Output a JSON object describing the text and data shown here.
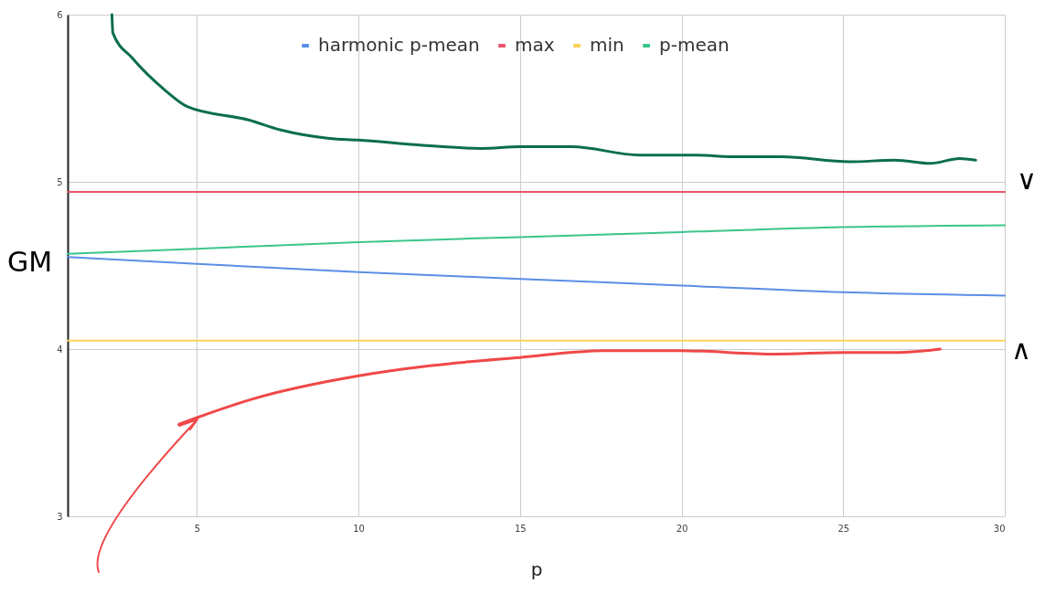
{
  "chart_data": {
    "type": "line",
    "xlabel": "p",
    "xlim": [
      1,
      30
    ],
    "xticks": [
      5,
      10,
      15,
      20,
      25,
      30
    ],
    "ylim": [
      3,
      6
    ],
    "yticks": [
      3,
      4,
      5,
      6
    ],
    "grid": true,
    "legend": "top",
    "annotations": [
      "GM",
      "∨",
      "∧"
    ],
    "series": [
      {
        "name": "harmonic p-mean",
        "color": "#5b8ee6",
        "x": [
          1,
          5,
          10,
          15,
          20,
          25,
          30
        ],
        "values": [
          4.55,
          4.51,
          4.46,
          4.42,
          4.38,
          4.34,
          4.32
        ]
      },
      {
        "name": "max",
        "color": "#e8556a",
        "x": [
          1,
          30
        ],
        "values": [
          4.94,
          4.94
        ]
      },
      {
        "name": "min",
        "color": "#fbd35a",
        "x": [
          1,
          30
        ],
        "values": [
          4.05,
          4.05
        ]
      },
      {
        "name": "p-mean",
        "color": "#3cc58a",
        "x": [
          1,
          5,
          10,
          15,
          20,
          25,
          30
        ],
        "values": [
          4.57,
          4.6,
          4.64,
          4.67,
          4.7,
          4.73,
          4.74
        ]
      },
      {
        "color": "#0b6e4f",
        "x": [
          2.37,
          2.4,
          3.0,
          4.0,
          4.7,
          6.6,
          7.6,
          9.1,
          10,
          11.9,
          13.8,
          15,
          16.6,
          18.7,
          20.3,
          21.8,
          23.1,
          25.2,
          26.6,
          27.7,
          28.6,
          29.1
        ],
        "values": [
          6.0,
          5.89,
          5.74,
          5.55,
          5.45,
          5.37,
          5.31,
          5.26,
          5.25,
          5.22,
          5.2,
          5.21,
          5.21,
          5.16,
          5.16,
          5.15,
          5.15,
          5.12,
          5.13,
          5.11,
          5.14,
          5.13
        ]
      },
      {
        "color": "#f04848",
        "x": [
          4.44,
          5,
          6.7,
          10,
          12.2,
          15,
          17.6,
          20,
          22.9,
          25,
          26.7,
          28
        ],
        "values": [
          3.55,
          3.59,
          3.7,
          3.84,
          3.9,
          3.95,
          3.99,
          3.99,
          3.97,
          3.98,
          3.98,
          4.0
        ]
      }
    ]
  }
}
